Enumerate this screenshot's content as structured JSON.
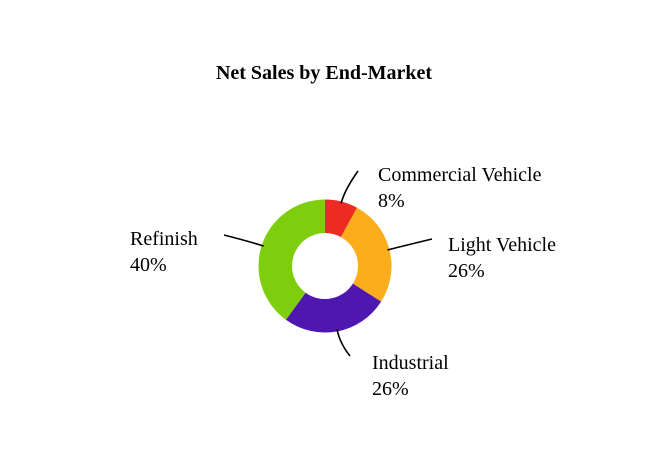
{
  "chart_data": {
    "type": "pie",
    "donut": true,
    "title": "Net Sales by End-Market",
    "slices": [
      {
        "label": "Commercial Vehicle",
        "value": 8,
        "value_label": "8%",
        "color": "#ee2a24"
      },
      {
        "label": "Light Vehicle",
        "value": 26,
        "value_label": "26%",
        "color": "#fcad1c"
      },
      {
        "label": "Industrial",
        "value": 26,
        "value_label": "26%",
        "color": "#4d17b0"
      },
      {
        "label": "Refinish",
        "value": 40,
        "value_label": "40%",
        "color": "#7ece0d"
      }
    ],
    "start_angle": "12 o'clock",
    "direction": "clockwise",
    "legend": "none"
  }
}
